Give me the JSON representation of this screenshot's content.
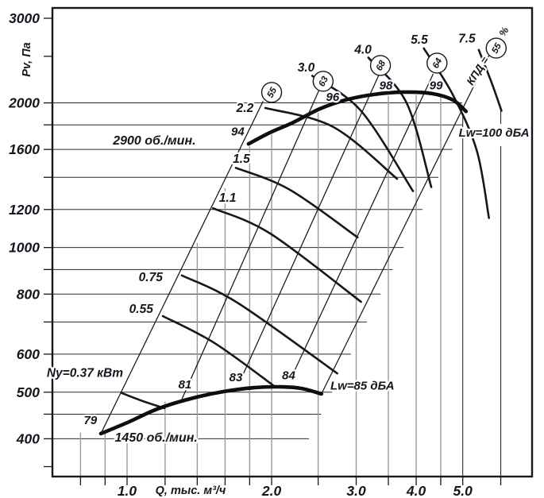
{
  "chart_data": {
    "type": "line",
    "title": "Fan aerodynamic characteristic",
    "x_axis": {
      "label": "Q, тыс. м³/ч",
      "scale": "log",
      "range": [
        0.7,
        7.0
      ],
      "ticks": [
        {
          "q": 0.8
        },
        {
          "q": 0.9
        },
        {
          "q": 1.0,
          "label": "1.0"
        },
        {
          "q": 1.2
        },
        {
          "q": 1.4
        },
        {
          "q": 1.6
        },
        {
          "q": 1.8
        },
        {
          "q": 2.0,
          "label": "2.0"
        },
        {
          "q": 2.5
        },
        {
          "q": 3.0,
          "label": "3.0"
        },
        {
          "q": 3.5
        },
        {
          "q": 4.0,
          "label": "4.0"
        },
        {
          "q": 4.5
        },
        {
          "q": 5.0,
          "label": "5.0"
        },
        {
          "q": 6.0
        }
      ],
      "gridlines_gray": [
        {
          "q": 0.8,
          "p_top": 412
        },
        {
          "q": 0.9,
          "p_top": 412
        },
        {
          "q": 1.0,
          "p_top": 412
        },
        {
          "q": 1.2,
          "p_top": 478
        },
        {
          "q": 1.4,
          "p_top": 1023
        },
        {
          "q": 1.6,
          "p_top": 1330
        },
        {
          "q": 1.8,
          "p_top": 1624
        },
        {
          "q": 2.0,
          "p_top": 1718
        },
        {
          "q": 2.5,
          "p_top": 1906
        },
        {
          "q": 3.0,
          "p_top": 2010
        },
        {
          "q": 3.5,
          "p_top": 2070
        },
        {
          "q": 4.0,
          "p_top": 2078
        },
        {
          "q": 4.5,
          "p_top": 2062
        }
      ],
      "gridlines_black": [
        {
          "q": 5.0,
          "p_top": 1870
        },
        {
          "q": 6.0,
          "p_top": 1966,
          "label_gap_y": [
            156,
            184
          ]
        }
      ]
    },
    "y_axis": {
      "label": "Pv, Па",
      "scale": "log",
      "range": [
        335,
        3150
      ],
      "ticks": [
        {
          "p": 3000,
          "label": "3000",
          "line": false
        },
        {
          "p": 2500,
          "line": false
        },
        {
          "p": 2000,
          "label": "2000",
          "line": true
        },
        {
          "p": 1800,
          "line": true
        },
        {
          "p": 1600,
          "label": "1600",
          "line": true
        },
        {
          "p": 1400,
          "line": true
        },
        {
          "p": 1200,
          "label": "1200",
          "line": true
        },
        {
          "p": 1000,
          "label": "1000",
          "line": true
        },
        {
          "p": 900,
          "line": true
        },
        {
          "p": 800,
          "label": "800",
          "line": true
        },
        {
          "p": 700,
          "line": true
        },
        {
          "p": 600,
          "label": "600",
          "line": true
        },
        {
          "p": 500,
          "label": "500",
          "line": true
        },
        {
          "p": 450,
          "line": true
        },
        {
          "p": 400,
          "label": "400",
          "line": true
        },
        {
          "p": 350,
          "line": false
        }
      ]
    },
    "series": [
      {
        "name": "pressure_2900",
        "speed_label": "2900 об./мин.",
        "label_pos": [
          1.14,
          1670
        ],
        "points": [
          [
            1.79,
            1643
          ],
          [
            1.98,
            1733
          ],
          [
            2.22,
            1822
          ],
          [
            2.52,
            1944
          ],
          [
            2.85,
            2028
          ],
          [
            3.26,
            2082
          ],
          [
            3.79,
            2106
          ],
          [
            4.33,
            2090
          ],
          [
            4.77,
            2028
          ],
          [
            5.08,
            1920
          ]
        ]
      },
      {
        "name": "pressure_1450",
        "speed_label": "1450 об./мин.",
        "label_pos": [
          1.15,
          402
        ],
        "points": [
          [
            0.882,
            410
          ],
          [
            1.0,
            432
          ],
          [
            1.16,
            462
          ],
          [
            1.36,
            485
          ],
          [
            1.58,
            501
          ],
          [
            1.84,
            511
          ],
          [
            2.1,
            513
          ],
          [
            2.31,
            509
          ],
          [
            2.54,
            496
          ]
        ]
      }
    ],
    "efficiency_lines": [
      {
        "eta": "55",
        "from": [
          0.882,
          410
        ],
        "to": [
          1.92,
          2016
        ],
        "circle": [
          2.0,
          2103
        ]
      },
      {
        "eta": "63",
        "from": [
          1.3,
          483
        ],
        "to": [
          2.51,
          2125
        ],
        "circle": [
          2.56,
          2218
        ]
      },
      {
        "eta": "68",
        "from": [
          1.72,
          528
        ],
        "to": [
          3.34,
          2280
        ],
        "circle": [
          3.37,
          2393
        ]
      },
      {
        "eta": "64",
        "from": [
          2.19,
          532
        ],
        "to": [
          4.34,
          2298
        ],
        "circle": [
          4.42,
          2420
        ]
      },
      {
        "eta": "55",
        "from": [
          2.54,
          496
        ],
        "to": [
          5.67,
          2510
        ],
        "circle": [
          5.87,
          2600
        ]
      }
    ],
    "efficiency_axis": {
      "label": "КПД =",
      "label_pos": [
        5.45,
        2310
      ],
      "percent": "%",
      "percent_pos": [
        6.17,
        2790
      ],
      "rotation": -57
    },
    "power_curves": [
      {
        "kw": "0.37",
        "label": "Ny=0.37 кВт",
        "label_pos": [
          0.817,
          548
        ],
        "points": [
          [
            0.974,
            498
          ],
          [
            1.079,
            479
          ],
          [
            1.196,
            463
          ]
        ]
      },
      {
        "kw": "0.55",
        "label": "0.55",
        "label_pos": [
          1.07,
          745
        ],
        "points": [
          [
            1.187,
            720
          ],
          [
            1.52,
            633
          ],
          [
            2.04,
            512
          ]
        ]
      },
      {
        "kw": "0.75",
        "label": "0.75",
        "label_pos": [
          1.12,
          868
        ],
        "points": [
          [
            1.3,
            875
          ],
          [
            1.7,
            767
          ],
          [
            2.74,
            547
          ]
        ]
      },
      {
        "kw": "1.1",
        "label": "1.1",
        "label_pos": [
          1.62,
          1270
        ],
        "points": [
          [
            1.51,
            1207
          ],
          [
            1.985,
            1070
          ],
          [
            3.07,
            771
          ]
        ]
      },
      {
        "kw": "1.5",
        "label": "1.5",
        "label_pos": [
          1.73,
          1530
        ],
        "points": [
          [
            1.685,
            1465
          ],
          [
            2.18,
            1320
          ],
          [
            3.02,
            1050
          ]
        ]
      },
      {
        "kw": "2.2",
        "label": "2.2",
        "label_pos": [
          1.76,
          1950
        ],
        "points": [
          [
            1.94,
            1952
          ],
          [
            2.69,
            1781
          ],
          [
            3.65,
            1390
          ]
        ]
      },
      {
        "kw": "3.0",
        "label": "3.0",
        "label_pos": [
          2.36,
          2370
        ],
        "points": [
          [
            2.43,
            2277
          ],
          [
            3.07,
            1925
          ],
          [
            3.94,
            1310
          ]
        ]
      },
      {
        "kw": "4.0",
        "label": "4.0",
        "label_pos": [
          3.1,
          2580
        ],
        "points": [
          [
            3.18,
            2485
          ],
          [
            3.82,
            2000
          ],
          [
            4.3,
            1336
          ]
        ]
      },
      {
        "kw": "5.5",
        "label": "5.5",
        "label_pos": [
          4.06,
          2705
        ],
        "points": [
          [
            4.15,
            2597
          ],
          [
            4.77,
            2078
          ],
          [
            5.35,
            1590
          ],
          [
            5.67,
            1152
          ]
        ]
      },
      {
        "kw": "7.5",
        "label": "7.5",
        "label_pos": [
          5.1,
          2725
        ],
        "points": [
          [
            5.4,
            2578
          ],
          [
            5.76,
            2186
          ],
          [
            6.02,
            1926
          ]
        ]
      }
    ],
    "noise_labels": [
      {
        "text": "94",
        "pos": [
          1.7,
          1745
        ]
      },
      {
        "text": "96",
        "pos": [
          2.68,
          2060
        ]
      },
      {
        "text": "98",
        "pos": [
          3.46,
          2175
        ]
      },
      {
        "text": "99",
        "pos": [
          4.4,
          2175
        ]
      },
      {
        "text": "79",
        "pos": [
          0.839,
          437
        ]
      },
      {
        "text": "81",
        "pos": [
          1.32,
          519
        ]
      },
      {
        "text": "83",
        "pos": [
          1.685,
          537
        ]
      },
      {
        "text": "84",
        "pos": [
          2.17,
          542
        ]
      },
      {
        "text": "Lw=100 дБА",
        "pos": [
          5.81,
          1735
        ]
      },
      {
        "text": "Lw=85 дБА",
        "pos": [
          3.09,
          516
        ]
      }
    ],
    "colors": {
      "line_black": "#16161f",
      "grid_black": "#2b2b2b",
      "grid_gray": "#9a9a9a",
      "text": "#16161f",
      "background": "#ffffff"
    }
  }
}
